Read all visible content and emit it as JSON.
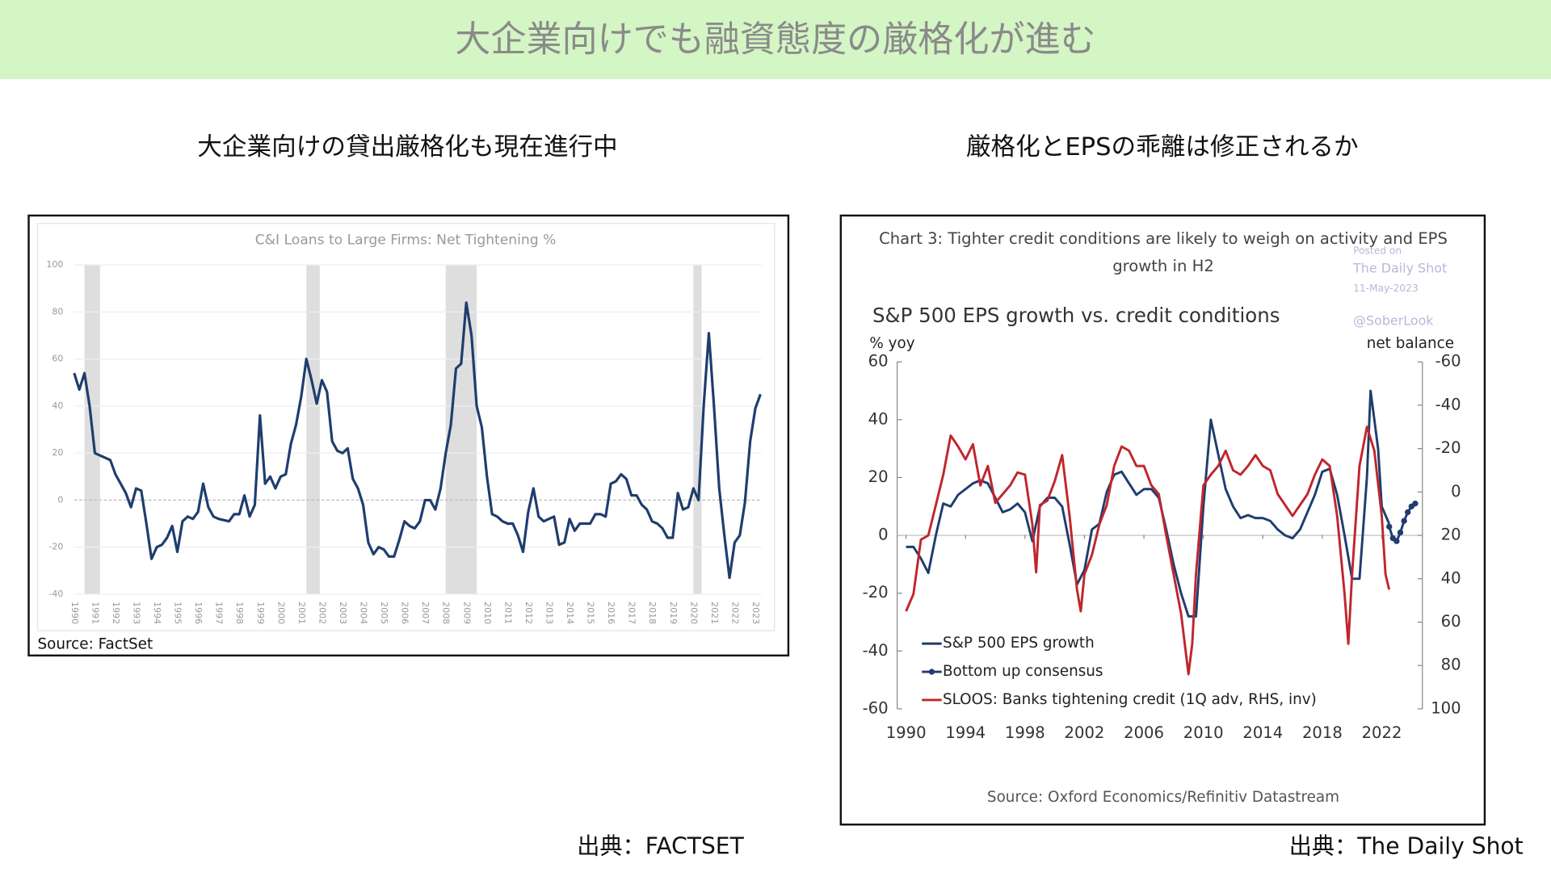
{
  "header": {
    "title": "大企業向けでも融資態度の厳格化が進む"
  },
  "left": {
    "heading": "大企業向けの貸出厳格化も現在進行中",
    "source": "Source: FactSet",
    "credit": "出典：FACTSET"
  },
  "right": {
    "heading": "厳格化とEPSの乖離は修正されるか",
    "credit": "出典：The Daily Shot",
    "watermark": [
      "Posted on",
      "The Daily Shot",
      "11-May-2023",
      "@SoberLook"
    ]
  },
  "chart_data": [
    {
      "type": "line",
      "title": "C&I Loans to Large Firms: Net Tightening %",
      "color": "#1f3d6e",
      "grid": true,
      "x": [
        1990,
        1990.25,
        1990.5,
        1990.75,
        1991,
        1991.5,
        1991.75,
        1992,
        1992.5,
        1992.75,
        1993,
        1993.25,
        1993.5,
        1993.75,
        1994,
        1994.25,
        1994.5,
        1994.75,
        1995,
        1995.25,
        1995.5,
        1995.75,
        1996,
        1996.25,
        1996.5,
        1996.75,
        1997,
        1997.5,
        1997.75,
        1998,
        1998.25,
        1998.5,
        1998.75,
        1999,
        1999.25,
        1999.5,
        1999.75,
        2000,
        2000.25,
        2000.5,
        2000.75,
        2001,
        2001.25,
        2001.5,
        2001.75,
        2002,
        2002.25,
        2002.5,
        2002.75,
        2003,
        2003.25,
        2003.5,
        2003.75,
        2004,
        2004.25,
        2004.5,
        2004.75,
        2005,
        2005.25,
        2005.5,
        2005.75,
        2006,
        2006.25,
        2006.5,
        2006.75,
        2007,
        2007.25,
        2007.5,
        2007.75,
        2008,
        2008.25,
        2008.5,
        2008.75,
        2009,
        2009.25,
        2009.5,
        2009.75,
        2010,
        2010.25,
        2010.5,
        2010.75,
        2011,
        2011.25,
        2011.5,
        2011.75,
        2012,
        2012.25,
        2012.5,
        2012.75,
        2013,
        2013.25,
        2013.5,
        2013.75,
        2014,
        2014.25,
        2014.5,
        2014.75,
        2015,
        2015.25,
        2015.5,
        2015.75,
        2016,
        2016.25,
        2016.5,
        2016.75,
        2017,
        2017.25,
        2017.5,
        2017.75,
        2018,
        2018.25,
        2018.5,
        2018.75,
        2019,
        2019.25,
        2019.5,
        2019.75,
        2020,
        2020.25,
        2020.5,
        2020.75,
        2021,
        2021.25,
        2021.5,
        2021.75,
        2022,
        2022.25,
        2022.5,
        2022.75,
        2023,
        2023.25
      ],
      "values": [
        54,
        47,
        54,
        40,
        20,
        18,
        17,
        11,
        3,
        -3,
        5,
        4,
        -10,
        -25,
        -20,
        -19,
        -16,
        -11,
        -22,
        -9,
        -7,
        -8,
        -5,
        7,
        -3,
        -7,
        -8,
        -9,
        -6,
        -6,
        2,
        -7,
        -2,
        36,
        7,
        10,
        5,
        10,
        11,
        24,
        32,
        44,
        60,
        51,
        41,
        51,
        46,
        25,
        21,
        20,
        22,
        9,
        5,
        -2,
        -18,
        -23,
        -20,
        -21,
        -24,
        -24,
        -17,
        -9,
        -11,
        -12,
        -9,
        0,
        0,
        -4,
        5,
        20,
        32,
        56,
        58,
        84,
        70,
        40,
        31,
        10,
        -6,
        -7,
        -9,
        -10,
        -10,
        -15,
        -22,
        -5,
        5,
        -7,
        -9,
        -8,
        -7,
        -19,
        -18,
        -8,
        -13,
        -10,
        -10,
        -10,
        -6,
        -6,
        -7,
        7,
        8,
        11,
        9,
        2,
        2,
        -2,
        -4,
        -9,
        -10,
        -12,
        -16,
        -16,
        3,
        -4,
        -3,
        5,
        0,
        40,
        71,
        40,
        5,
        -15,
        -33,
        -18,
        -15,
        -1,
        25,
        39,
        45
      ],
      "shaded": [
        [
          1990.5,
          1991.25
        ],
        [
          2001.25,
          2001.9
        ],
        [
          2008,
          2009.5
        ],
        [
          2020,
          2020.4
        ]
      ],
      "xlim": [
        1990,
        2023.5
      ],
      "xticks": [
        1990,
        1991,
        1992,
        1993,
        1994,
        1995,
        1996,
        1997,
        1998,
        1999,
        2000,
        2001,
        2002,
        2003,
        2004,
        2005,
        2006,
        2007,
        2008,
        2009,
        2010,
        2011,
        2012,
        2013,
        2014,
        2015,
        2016,
        2017,
        2018,
        2019,
        2020,
        2021,
        2022,
        2023
      ],
      "ylim": [
        -40,
        100
      ],
      "yticks": [
        100,
        80,
        60,
        40,
        20,
        0,
        -20,
        -40
      ]
    },
    {
      "type": "line",
      "title": "Chart 3: Tighter credit conditions are likely to weigh on activity and EPS",
      "title2": "growth in H2",
      "subtitle": "S&P 500 EPS growth vs. credit conditions",
      "ylabel": "% yoy",
      "y2label": "net balance",
      "source": "Source: Oxford Economics/Refinitiv Datastream",
      "y2_inverted": true,
      "grid": false,
      "xlim": [
        1990,
        2025
      ],
      "xticks": [
        1990,
        1994,
        1998,
        2002,
        2006,
        2010,
        2014,
        2018,
        2022
      ],
      "ylim": [
        -60,
        60
      ],
      "yticks": [
        60,
        40,
        20,
        0,
        -20,
        -40,
        -60
      ],
      "y2lim": [
        -60,
        100
      ],
      "y2ticks": [
        -60,
        -40,
        -20,
        0,
        20,
        40,
        60,
        80,
        100
      ],
      "series": [
        {
          "name": "S&P 500 EPS growth",
          "color": "#1f3d6e",
          "x": [
            1990,
            1990.5,
            1991,
            1991.5,
            1992,
            1992.5,
            1993,
            1993.5,
            1994,
            1994.5,
            1995,
            1995.5,
            1996,
            1996.5,
            1997,
            1997.5,
            1998,
            1998.5,
            1999,
            1999.5,
            2000,
            2000.5,
            2001,
            2001.5,
            2002,
            2002.5,
            2003,
            2003.5,
            2004,
            2004.5,
            2005,
            2005.5,
            2006,
            2006.5,
            2007,
            2007.5,
            2008,
            2008.5,
            2009,
            2009.5,
            2010,
            2010.5,
            2011,
            2011.5,
            2012,
            2012.5,
            2013,
            2013.5,
            2014,
            2014.5,
            2015,
            2015.5,
            2016,
            2016.5,
            2017,
            2017.5,
            2018,
            2018.5,
            2019,
            2019.5,
            2020,
            2020.5,
            2021,
            2021.25,
            2021.75,
            2022,
            2022.5
          ],
          "values": [
            -4,
            -4,
            -8,
            -13,
            0,
            11,
            10,
            14,
            16,
            18,
            19,
            18,
            13,
            8,
            9,
            11,
            8,
            -2,
            10,
            13,
            13,
            10,
            -3,
            -17,
            -12,
            2,
            4,
            15,
            21,
            22,
            18,
            14,
            16,
            16,
            13,
            2,
            -10,
            -20,
            -28,
            -28,
            10,
            40,
            28,
            16,
            10,
            6,
            7,
            6,
            6,
            5,
            2,
            0,
            -1,
            2,
            8,
            14,
            22,
            23,
            14,
            0,
            -15,
            -15,
            20,
            50,
            30,
            10,
            4
          ]
        },
        {
          "name": "Bottom up consensus",
          "color": "#1f3d6e",
          "markers": true,
          "x": [
            2022.5,
            2022.75,
            2023,
            2023.25,
            2023.5,
            2023.75,
            2024,
            2024.25
          ],
          "values": [
            3,
            -1,
            -2,
            1,
            5,
            8,
            10,
            11
          ]
        },
        {
          "name": "SLOOS: Banks tightening credit (1Q adv, RHS, inv)",
          "color": "#c0262d",
          "axis": "y2",
          "x": [
            1990,
            1990.5,
            1991,
            1991.5,
            1992,
            1992.5,
            1993,
            1993.5,
            1994,
            1994.5,
            1995,
            1995.5,
            1996,
            1996.5,
            1997,
            1997.5,
            1998,
            1998.5,
            1998.75,
            1999,
            1999.5,
            2000,
            2000.5,
            2001,
            2001.5,
            2001.75,
            2002,
            2002.5,
            2003,
            2003.5,
            2004,
            2004.5,
            2005,
            2005.5,
            2006,
            2006.5,
            2007,
            2007.5,
            2008,
            2008.5,
            2009,
            2009.25,
            2009.5,
            2010,
            2010.5,
            2011,
            2011.5,
            2012,
            2012.5,
            2013,
            2013.5,
            2014,
            2014.5,
            2015,
            2015.5,
            2016,
            2016.5,
            2017,
            2017.5,
            2018,
            2018.5,
            2019,
            2019.5,
            2019.75,
            2020,
            2020.5,
            2021,
            2021.5,
            2022,
            2022.25,
            2022.5
          ],
          "values": [
            55,
            47,
            22,
            20,
            6,
            -8,
            -26,
            -21,
            -15,
            -22,
            -3,
            -12,
            5,
            1,
            -3,
            -9,
            -8,
            15,
            37,
            6,
            4,
            -5,
            -17,
            11,
            45,
            55,
            38,
            29,
            15,
            6,
            -12,
            -21,
            -19,
            -12,
            -12,
            -3,
            1,
            20,
            38,
            56,
            84,
            70,
            38,
            -3,
            -8,
            -12,
            -19,
            -10,
            -8,
            -12,
            -17,
            -12,
            -10,
            1,
            6,
            11,
            6,
            1,
            -8,
            -15,
            -12,
            11,
            47,
            70,
            38,
            -12,
            -30,
            -19,
            11,
            38,
            45
          ]
        }
      ]
    }
  ]
}
